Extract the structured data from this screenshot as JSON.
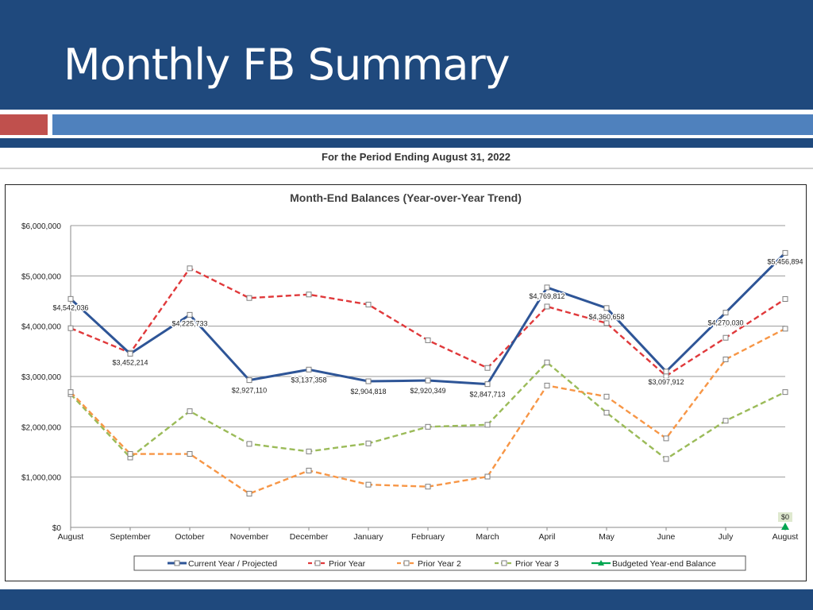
{
  "slide": {
    "title": "Monthly FB Summary",
    "subtitle": "For the Period Ending August 31, 2022"
  },
  "chart_data": {
    "type": "line",
    "title": "Month-End Balances (Year-over-Year Trend)",
    "categories": [
      "August",
      "September",
      "October",
      "November",
      "December",
      "January",
      "February",
      "March",
      "April",
      "May",
      "June",
      "July",
      "August"
    ],
    "ylim": [
      0,
      6000000
    ],
    "yticks": [
      0,
      1000000,
      2000000,
      3000000,
      4000000,
      5000000,
      6000000
    ],
    "ytick_labels": [
      "$0",
      "$1,000,000",
      "$2,000,000",
      "$3,000,000",
      "$4,000,000",
      "$5,000,000",
      "$6,000,000"
    ],
    "grid": true,
    "legend_position": "bottom",
    "series": [
      {
        "name": "Prior Year 3",
        "color": "#9bbb59",
        "dash": "dashed",
        "values": [
          2650000,
          1390000,
          2310000,
          1660000,
          1510000,
          1670000,
          2000000,
          2040000,
          3280000,
          2280000,
          1360000,
          2120000,
          2690000
        ]
      },
      {
        "name": "Prior Year 2",
        "color": "#f79646",
        "dash": "dashed",
        "values": [
          2690000,
          1460000,
          1460000,
          670000,
          1130000,
          850000,
          810000,
          1010000,
          2820000,
          2600000,
          1770000,
          3340000,
          3950000
        ]
      },
      {
        "name": "Prior Year",
        "color": "#e0393b",
        "dash": "dashed",
        "values": [
          3960000,
          3470000,
          5150000,
          4560000,
          4630000,
          4430000,
          3720000,
          3170000,
          4390000,
          4060000,
          3010000,
          3770000,
          4540000
        ]
      },
      {
        "name": "Current Year / Projected",
        "color": "#2e5597",
        "dash": "solid",
        "values": [
          4542036,
          3452214,
          4225733,
          2927110,
          3137358,
          2904818,
          2920349,
          2847713,
          4769812,
          4360658,
          3097912,
          4270030,
          5456894
        ],
        "labels": [
          "$4,542,036",
          "$3,452,214",
          "$4,225,733",
          "$2,927,110",
          "$3,137,358",
          "$2,904,818",
          "$2,920,349",
          "$2,847,713",
          "$4,769,812",
          "$4,360,658",
          "$3,097,912",
          "$4,270,030",
          "$5,456,894"
        ]
      }
    ],
    "budgeted": {
      "name": "Budgeted Year-end Balance",
      "color": "#00a650",
      "category_index": 12,
      "value": 0,
      "label": "$0"
    },
    "legend": [
      "Current Year / Projected",
      "Prior Year",
      "Prior Year 2",
      "Prior Year 3",
      "Budgeted Year-end Balance"
    ]
  }
}
